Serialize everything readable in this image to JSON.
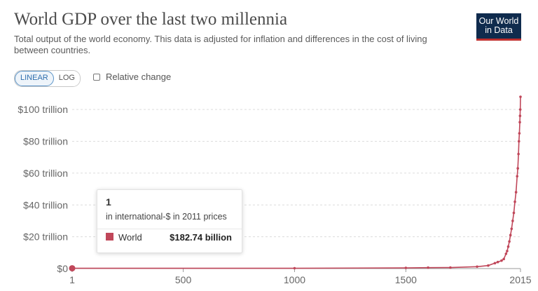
{
  "header": {
    "title": "World GDP over the last two millennia",
    "subtitle": "Total output of the world economy. This data is adjusted for inflation and differences in the cost of living between countries.",
    "logo_line1": "Our World",
    "logo_line2": "in Data"
  },
  "controls": {
    "linear_label": "LINEAR",
    "log_label": "LOG",
    "relative_change_label": "Relative change"
  },
  "tooltip": {
    "title": "1",
    "subtitle": "in international-$ in 2011 prices",
    "series_label": "World",
    "series_value": "$182.74 billion"
  },
  "colors": {
    "series": "#c0475a",
    "logo_bg": "#0f2b4d",
    "logo_accent": "#c0302e"
  },
  "chart_data": {
    "type": "line",
    "title": "World GDP over the last two millennia",
    "xlabel": "",
    "ylabel": "",
    "xlim": [
      1,
      2015
    ],
    "ylim": [
      0,
      108
    ],
    "y_unit": "trillion",
    "x_ticks": [
      1,
      500,
      1000,
      1500,
      2015
    ],
    "y_ticks": [
      0,
      20,
      40,
      60,
      80,
      100
    ],
    "y_tick_labels": [
      "$0",
      "$20 trillion",
      "$40 trillion",
      "$60 trillion",
      "$80 trillion",
      "$100 trillion"
    ],
    "grid": true,
    "legend": "none",
    "series": [
      {
        "name": "World",
        "x": [
          1,
          1000,
          1500,
          1600,
          1700,
          1820,
          1870,
          1900,
          1913,
          1930,
          1940,
          1950,
          1955,
          1960,
          1965,
          1970,
          1975,
          1980,
          1985,
          1990,
          1995,
          2000,
          2003,
          2006,
          2008,
          2010,
          2012,
          2013,
          2014,
          2015
        ],
        "y": [
          0.18,
          0.21,
          0.43,
          0.59,
          0.64,
          1.2,
          1.9,
          3.4,
          4.1,
          5.0,
          6.0,
          9.3,
          11.0,
          13.8,
          17.0,
          21.0,
          25.0,
          30.0,
          35.0,
          42.0,
          48.0,
          58.0,
          63.0,
          72.0,
          80.0,
          85.0,
          92.0,
          96.0,
          100.0,
          108.0
        ]
      }
    ]
  }
}
